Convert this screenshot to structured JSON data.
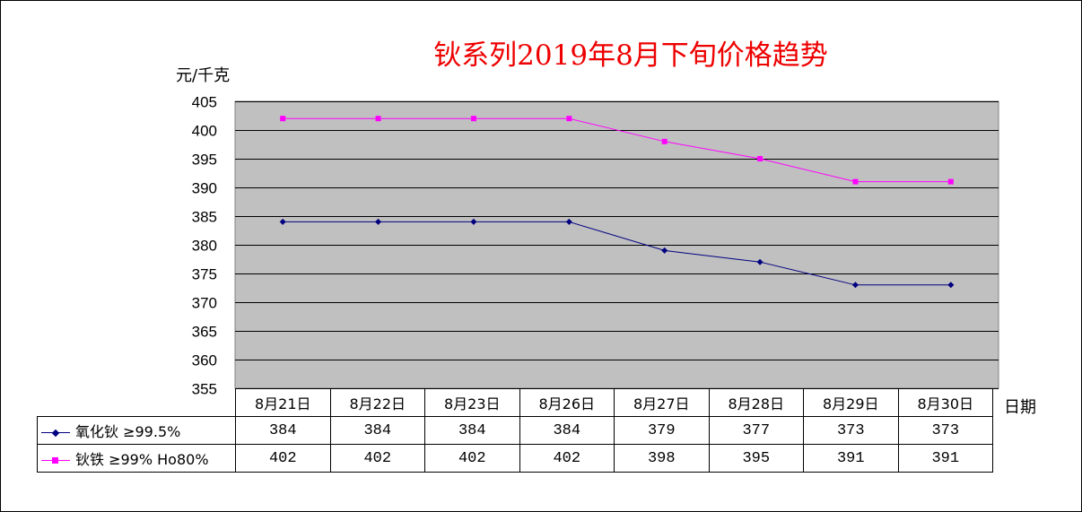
{
  "chart_data": {
    "type": "line",
    "title": "钬系列2019年8月下旬价格趋势",
    "ylabel": "元/千克",
    "xlabel": "日期",
    "categories": [
      "8月21日",
      "8月22日",
      "8月23日",
      "8月26日",
      "8月27日",
      "8月28日",
      "8月29日",
      "8月30日"
    ],
    "ylim": [
      355,
      405
    ],
    "yticks": [
      405,
      400,
      395,
      390,
      385,
      380,
      375,
      370,
      365,
      360,
      355
    ],
    "grid": true,
    "legend": "data table below chart",
    "plot_background": "#c0c0c0",
    "series": [
      {
        "name": "氧化钬 ≥99.5%",
        "values": [
          384,
          384,
          384,
          384,
          379,
          377,
          373,
          373
        ],
        "color": "#000080",
        "marker": "diamond"
      },
      {
        "name": "钬铁 ≥99% Ho80%",
        "values": [
          402,
          402,
          402,
          402,
          398,
          395,
          391,
          391
        ],
        "color": "#ff00ff",
        "marker": "square"
      }
    ],
    "table_values": [
      [
        "384",
        "384",
        "384",
        "384",
        "379",
        "377",
        "373",
        "373"
      ],
      [
        "402",
        "402",
        "402",
        "402",
        "398",
        "395",
        "391",
        "391"
      ]
    ]
  }
}
